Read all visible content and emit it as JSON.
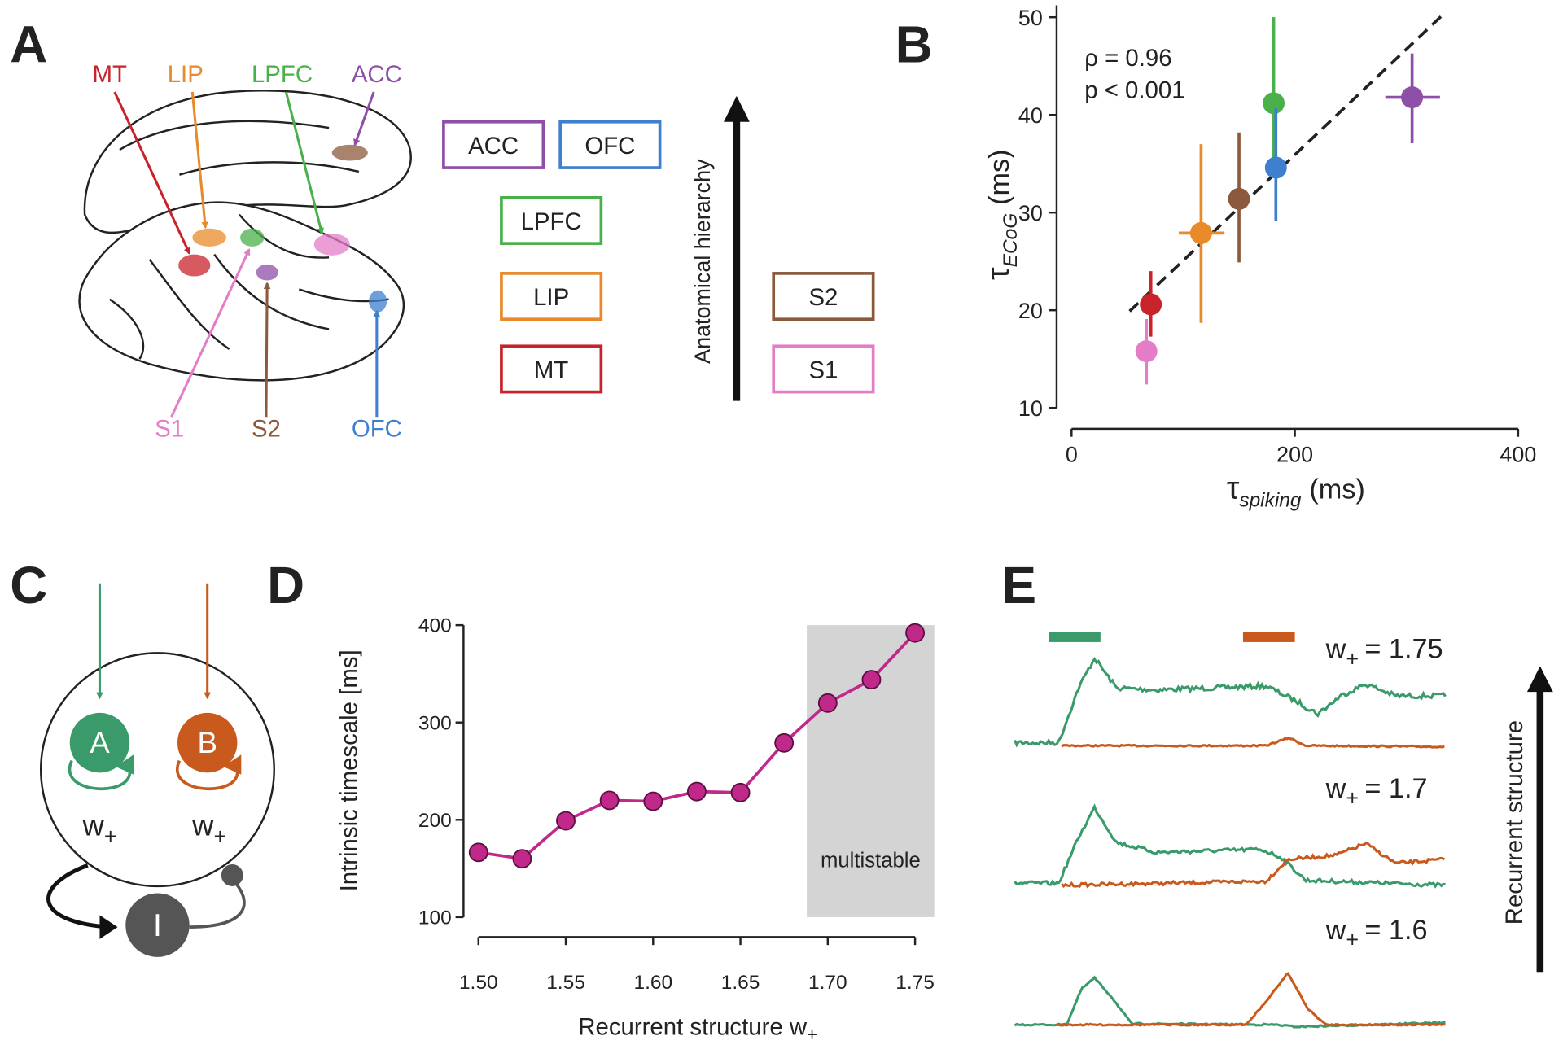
{
  "panel_labels": [
    "A",
    "B",
    "C",
    "D",
    "E"
  ],
  "panel_a": {
    "regions": [
      {
        "label": "MT",
        "color": "#c8232b"
      },
      {
        "label": "LIP",
        "color": "#e8892a"
      },
      {
        "label": "LPFC",
        "color": "#4ab04a"
      },
      {
        "label": "ACC",
        "color": "#8e4fa8"
      },
      {
        "label": "S1",
        "color": "#e47cc8"
      },
      {
        "label": "S2",
        "color": "#8b5a3c"
      },
      {
        "label": "OFC",
        "color": "#3f7fcf"
      }
    ],
    "hierarchy_label": "Anatomical hierarchy"
  },
  "chart_data": [
    {
      "type": "scatter",
      "annotations": [
        "ρ = 0.96",
        "p < 0.001"
      ],
      "x_label": {
        "symbol": "τ",
        "subscript": "spiking",
        "unit": "(ms)"
      },
      "y_label": {
        "symbol": "τ",
        "subscript": "ECoG",
        "unit": "(ms)"
      },
      "x": [
        71,
        67,
        116,
        150,
        181,
        183,
        305
      ],
      "y": [
        20.6,
        15.8,
        27.9,
        31.4,
        41.2,
        34.6,
        41.8
      ],
      "y_low": [
        17.3,
        12.4,
        18.7,
        24.9,
        35,
        29.1,
        37.1
      ],
      "y_high": [
        24,
        19.1,
        37,
        38.2,
        50,
        40.7,
        46.3
      ],
      "x_low": [
        null,
        null,
        96,
        null,
        null,
        null,
        281
      ],
      "x_high": [
        null,
        null,
        137,
        null,
        null,
        null,
        330
      ],
      "colors": [
        "#c8232b",
        "#e47cc8",
        "#e8892a",
        "#8b5a3c",
        "#4ab04a",
        "#3f7fcf",
        "#8e4fa8"
      ],
      "fit": {
        "x": [
          52,
          332
        ],
        "y": [
          19.9,
          50.2
        ]
      },
      "xlim": [
        0,
        400
      ],
      "ylim": [
        10,
        50
      ],
      "xticks": [
        0,
        200,
        400
      ],
      "yticks": [
        10,
        20,
        30,
        40,
        50
      ]
    },
    {
      "type": "line",
      "x": [
        1.5,
        1.525,
        1.55,
        1.575,
        1.6,
        1.625,
        1.65,
        1.675,
        1.7,
        1.725,
        1.75
      ],
      "values": [
        166.5,
        160,
        199,
        220,
        219,
        229,
        228,
        279,
        320,
        344,
        392
      ],
      "color": "#c0288a",
      "xlim": [
        1.5,
        1.75
      ],
      "ylim": [
        100,
        400
      ],
      "xticks": [
        {
          "value": 1.5,
          "label": "1.50"
        },
        1.55,
        {
          "value": 1.6,
          "label": "1.60"
        },
        1.65,
        {
          "value": 1.7,
          "label": "1.70"
        },
        1.75
      ],
      "yticks": [
        100,
        200,
        300,
        400
      ],
      "y_label": "Intrinsic timescale [ms]",
      "x_label": {
        "text": "Recurrent structure w",
        "subscript": "+"
      },
      "shaded": {
        "x": [
          1.688,
          1.761
        ],
        "label": "multistable"
      }
    }
  ],
  "panel_c": {
    "nodes": [
      "A",
      "B",
      "I"
    ],
    "weight": {
      "symbol": "w",
      "subscript": "+"
    }
  },
  "panel_e": {
    "conditions": [
      {
        "symbol": "w",
        "subscript": "+",
        "value": "= 1.75"
      },
      {
        "symbol": "w",
        "subscript": "+",
        "value": "= 1.7"
      },
      {
        "symbol": "w",
        "subscript": "+",
        "value": "= 1.6"
      }
    ],
    "axis_label": "Recurrent structure"
  }
}
